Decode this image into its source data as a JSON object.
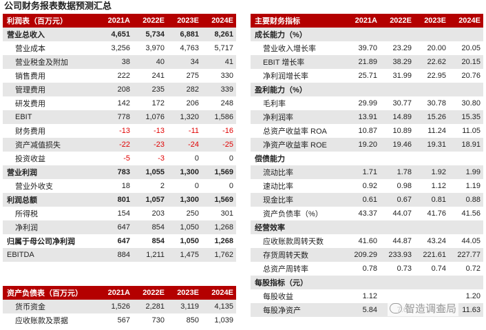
{
  "title": "公司财务报表数据预测汇总",
  "watermark": "智造调查局",
  "colors": {
    "header_bg": "#b40000",
    "alt_row": "#e6e6e6",
    "negative": "#e00000"
  },
  "income": {
    "header": [
      "利润表（百万元）",
      "2021A",
      "2022E",
      "2023E",
      "2024E"
    ],
    "rows": [
      {
        "label": "营业总收入",
        "values": [
          "4,651",
          "5,734",
          "6,881",
          "8,261"
        ],
        "bold": true,
        "alt": true,
        "indent": false
      },
      {
        "label": "营业成本",
        "values": [
          "3,256",
          "3,970",
          "4,763",
          "5,717"
        ],
        "bold": false,
        "alt": false,
        "indent": true
      },
      {
        "label": "营业税金及附加",
        "values": [
          "38",
          "40",
          "34",
          "41"
        ],
        "bold": false,
        "alt": true,
        "indent": true
      },
      {
        "label": "销售费用",
        "values": [
          "222",
          "241",
          "275",
          "330"
        ],
        "bold": false,
        "alt": false,
        "indent": true
      },
      {
        "label": "管理费用",
        "values": [
          "208",
          "235",
          "282",
          "339"
        ],
        "bold": false,
        "alt": true,
        "indent": true
      },
      {
        "label": "研发费用",
        "values": [
          "142",
          "172",
          "206",
          "248"
        ],
        "bold": false,
        "alt": false,
        "indent": true
      },
      {
        "label": "EBIT",
        "values": [
          "778",
          "1,076",
          "1,320",
          "1,586"
        ],
        "bold": false,
        "alt": true,
        "indent": true
      },
      {
        "label": "财务费用",
        "values": [
          "-13",
          "-13",
          "-11",
          "-16"
        ],
        "bold": false,
        "alt": false,
        "indent": true
      },
      {
        "label": "资产减值损失",
        "values": [
          "-22",
          "-23",
          "-24",
          "-25"
        ],
        "bold": false,
        "alt": true,
        "indent": true
      },
      {
        "label": "投资收益",
        "values": [
          "-5",
          "-3",
          "0",
          "0"
        ],
        "bold": false,
        "alt": false,
        "indent": true
      },
      {
        "label": "营业利润",
        "values": [
          "783",
          "1,055",
          "1,300",
          "1,569"
        ],
        "bold": true,
        "alt": true,
        "indent": false
      },
      {
        "label": "营业外收支",
        "values": [
          "18",
          "2",
          "0",
          "0"
        ],
        "bold": false,
        "alt": false,
        "indent": true
      },
      {
        "label": "利润总额",
        "values": [
          "801",
          "1,057",
          "1,300",
          "1,569"
        ],
        "bold": true,
        "alt": true,
        "indent": false
      },
      {
        "label": "所得税",
        "values": [
          "154",
          "203",
          "250",
          "301"
        ],
        "bold": false,
        "alt": false,
        "indent": true
      },
      {
        "label": "净利润",
        "values": [
          "647",
          "854",
          "1,050",
          "1,268"
        ],
        "bold": false,
        "alt": true,
        "indent": true
      },
      {
        "label": "归属于母公司净利润",
        "values": [
          "647",
          "854",
          "1,050",
          "1,268"
        ],
        "bold": true,
        "alt": false,
        "indent": false
      },
      {
        "label": "EBITDA",
        "values": [
          "884",
          "1,211",
          "1,475",
          "1,762"
        ],
        "bold": false,
        "alt": true,
        "indent": false
      }
    ]
  },
  "metrics": {
    "header": [
      "主要财务指标",
      "2021A",
      "2022E",
      "2023E",
      "2024E"
    ],
    "rows": [
      {
        "label": "成长能力（%）",
        "values": [
          "",
          "",
          "",
          ""
        ],
        "bold": true,
        "alt": true,
        "indent": false
      },
      {
        "label": "营业收入增长率",
        "values": [
          "39.70",
          "23.29",
          "20.00",
          "20.05"
        ],
        "bold": false,
        "alt": false,
        "indent": true
      },
      {
        "label": "EBIT 增长率",
        "values": [
          "21.89",
          "38.29",
          "22.62",
          "20.15"
        ],
        "bold": false,
        "alt": true,
        "indent": true
      },
      {
        "label": "净利润增长率",
        "values": [
          "25.71",
          "31.99",
          "22.95",
          "20.76"
        ],
        "bold": false,
        "alt": false,
        "indent": true
      },
      {
        "label": "盈利能力（%）",
        "values": [
          "",
          "",
          "",
          ""
        ],
        "bold": true,
        "alt": true,
        "indent": false
      },
      {
        "label": "毛利率",
        "values": [
          "29.99",
          "30.77",
          "30.78",
          "30.80"
        ],
        "bold": false,
        "alt": false,
        "indent": true
      },
      {
        "label": "净利润率",
        "values": [
          "13.91",
          "14.89",
          "15.26",
          "15.35"
        ],
        "bold": false,
        "alt": true,
        "indent": true
      },
      {
        "label": "总资产收益率 ROA",
        "values": [
          "10.87",
          "10.89",
          "11.24",
          "11.05"
        ],
        "bold": false,
        "alt": false,
        "indent": true
      },
      {
        "label": "净资产收益率 ROE",
        "values": [
          "19.20",
          "19.46",
          "19.31",
          "18.91"
        ],
        "bold": false,
        "alt": true,
        "indent": true
      },
      {
        "label": "偿债能力",
        "values": [
          "",
          "",
          "",
          ""
        ],
        "bold": true,
        "alt": false,
        "indent": false
      },
      {
        "label": "流动比率",
        "values": [
          "1.71",
          "1.78",
          "1.92",
          "1.99"
        ],
        "bold": false,
        "alt": true,
        "indent": true
      },
      {
        "label": "速动比率",
        "values": [
          "0.92",
          "0.98",
          "1.12",
          "1.19"
        ],
        "bold": false,
        "alt": false,
        "indent": true
      },
      {
        "label": "现金比率",
        "values": [
          "0.61",
          "0.67",
          "0.81",
          "0.88"
        ],
        "bold": false,
        "alt": true,
        "indent": true
      },
      {
        "label": "资产负债率（%）",
        "values": [
          "43.37",
          "44.07",
          "41.76",
          "41.56"
        ],
        "bold": false,
        "alt": false,
        "indent": true
      },
      {
        "label": "经营效率",
        "values": [
          "",
          "",
          "",
          ""
        ],
        "bold": true,
        "alt": true,
        "indent": false
      },
      {
        "label": "应收账款周转天数",
        "values": [
          "41.60",
          "44.87",
          "43.24",
          "44.05"
        ],
        "bold": false,
        "alt": false,
        "indent": true
      },
      {
        "label": "存货周转天数",
        "values": [
          "209.29",
          "233.93",
          "221.61",
          "227.77"
        ],
        "bold": false,
        "alt": true,
        "indent": true
      },
      {
        "label": "总资产周转率",
        "values": [
          "0.78",
          "0.73",
          "0.74",
          "0.72"
        ],
        "bold": false,
        "alt": false,
        "indent": true
      },
      {
        "label": "每股指标（元）",
        "values": [
          "",
          "",
          "",
          ""
        ],
        "bold": true,
        "alt": true,
        "indent": false
      },
      {
        "label": "每股收益",
        "values": [
          "1.12",
          "",
          "",
          "1.20"
        ],
        "bold": false,
        "alt": false,
        "indent": true
      },
      {
        "label": "每股净资产",
        "values": [
          "5.84",
          "7.61",
          "9.43",
          "11.63"
        ],
        "bold": false,
        "alt": true,
        "indent": true
      }
    ]
  },
  "balance": {
    "header": [
      "资产负债表（百万元）",
      "2021A",
      "2022E",
      "2023E",
      "2024E"
    ],
    "rows": [
      {
        "label": "货币资金",
        "values": [
          "1,526",
          "2,281",
          "3,119",
          "4,135"
        ],
        "bold": false,
        "alt": true,
        "indent": true
      },
      {
        "label": "应收账款及票据",
        "values": [
          "567",
          "730",
          "850",
          "1,039"
        ],
        "bold": false,
        "alt": false,
        "indent": true
      }
    ]
  }
}
